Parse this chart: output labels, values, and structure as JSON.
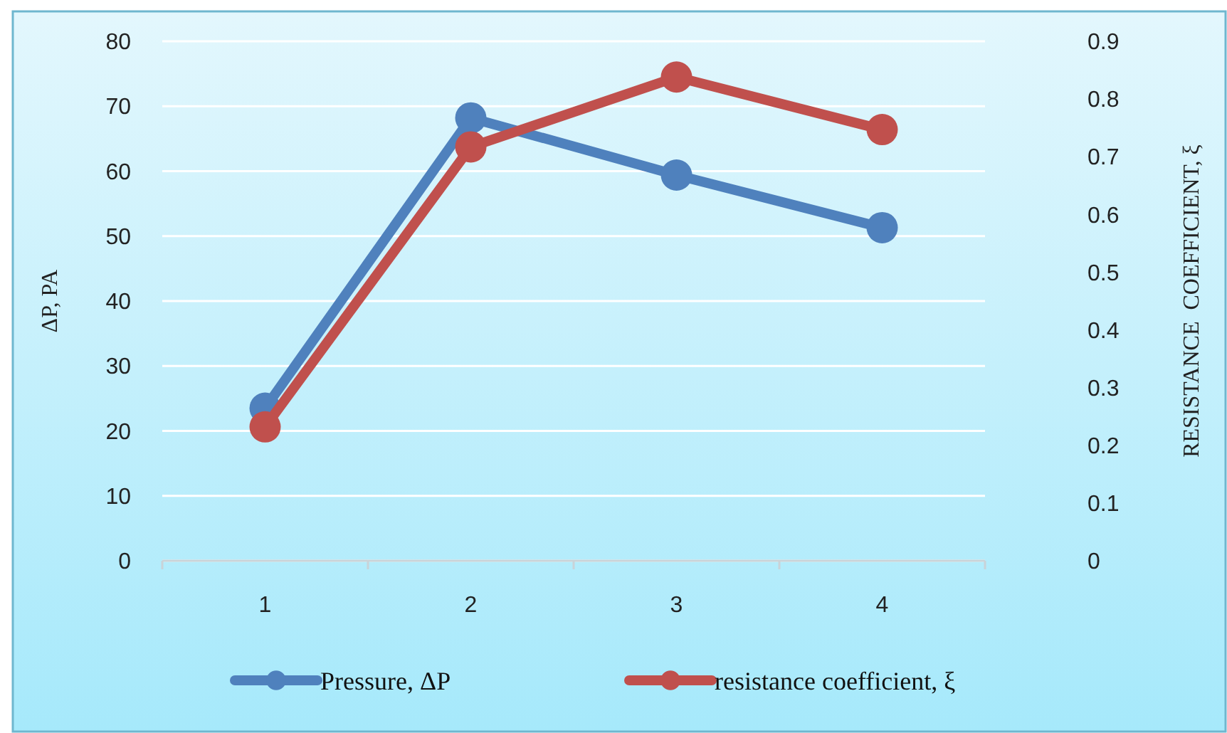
{
  "chart_data": {
    "type": "line",
    "ylabel": "ΔP, PA",
    "y2label": "RESISTANCE  COEFFICIENT, ξ",
    "categories": [
      "1",
      "2",
      "3",
      "4"
    ],
    "series": [
      {
        "name": "Pressure, ΔP",
        "color": "#4f81bd",
        "values": [
          23.5,
          68.2,
          59.4,
          51.3
        ]
      },
      {
        "name": "resistance coefficient, ξ",
        "color": "#c0504d",
        "values": [
          0.232,
          0.717,
          0.838,
          0.747
        ],
        "axis": "y2"
      }
    ],
    "ylim": [
      0,
      80
    ],
    "yticks": [
      0,
      10,
      20,
      30,
      40,
      50,
      60,
      70,
      80
    ],
    "y2lim": [
      0,
      0.9
    ],
    "y2ticks": [
      0,
      0.1,
      0.2,
      0.3,
      0.4,
      0.5,
      0.6,
      0.7,
      0.8,
      0.9
    ],
    "grid": "y",
    "legend": "bottom",
    "marker": "circle",
    "line_style": "solid"
  }
}
